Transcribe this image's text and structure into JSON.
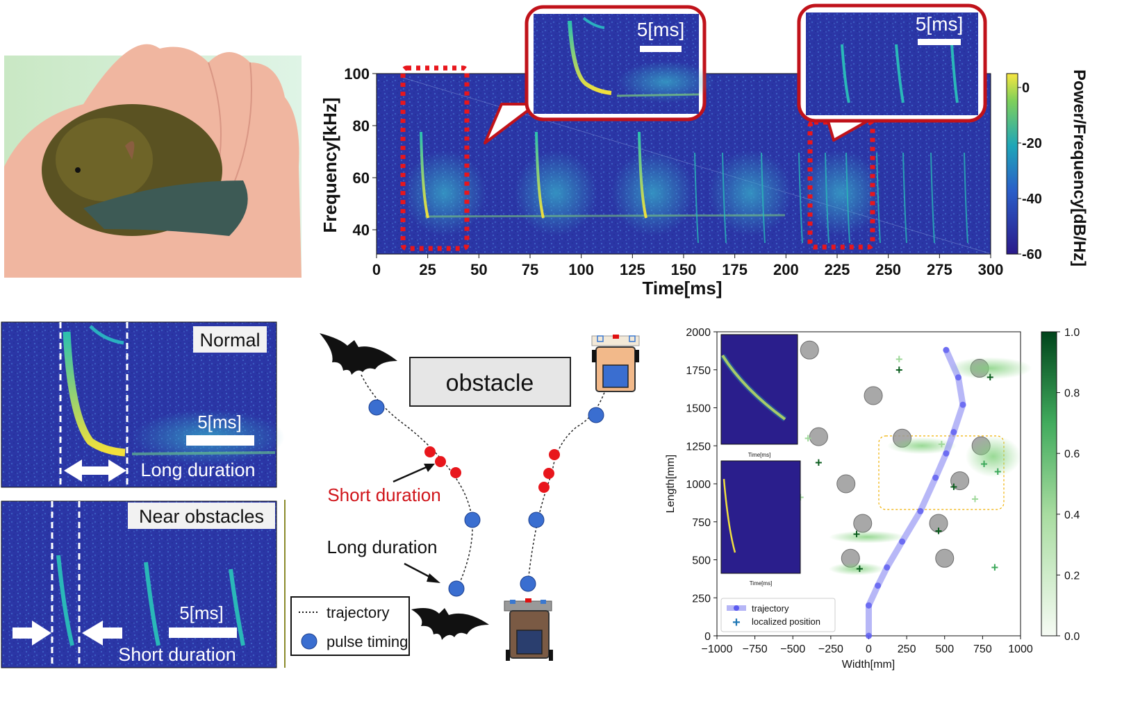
{
  "spectrogram": {
    "ylabel": "Frequency[kHz]",
    "xlabel": "Time[ms]",
    "xticks": [
      "0",
      "25",
      "50",
      "75",
      "100",
      "125",
      "150",
      "175",
      "200",
      "225",
      "250",
      "275",
      "300"
    ],
    "yticks": [
      "100",
      "80",
      "60",
      "40"
    ],
    "colorbar_label": "Power/Frequency[dB/Hz]",
    "colorbar_ticks": [
      "0",
      "-20",
      "-40",
      "-60"
    ],
    "callout_left_scale": "5[ms]",
    "callout_right_scale": "5[ms]"
  },
  "panel_normal": {
    "title": "Normal",
    "scale": "5[ms]",
    "caption": "Long duration"
  },
  "panel_near": {
    "title": "Near obstacles",
    "scale": "5[ms]",
    "caption": "Short duration"
  },
  "schematic": {
    "obstacle": "obstacle",
    "short_label": "Short duration",
    "long_label": "Long duration",
    "legend_trajectory": "trajectory",
    "legend_pulse": "pulse timing"
  },
  "trajectory_plot": {
    "xlabel": "Width[mm]",
    "ylabel": "Length[mm]",
    "xticks": [
      "−1000",
      "−750",
      "−500",
      "−250",
      "0",
      "250",
      "500",
      "750",
      "1000"
    ],
    "yticks": [
      "0",
      "250",
      "500",
      "750",
      "1000",
      "1250",
      "1500",
      "1750",
      "2000"
    ],
    "colorbar_ticks": [
      "1.0",
      "0.8",
      "0.6",
      "0.4",
      "0.2",
      "0.0"
    ],
    "legend_trajectory": "trajectory",
    "legend_localized": "localized position",
    "inset_top_xlabel": "Time[ms]",
    "inset_bottom_xlabel": "Time[ms]"
  }
}
